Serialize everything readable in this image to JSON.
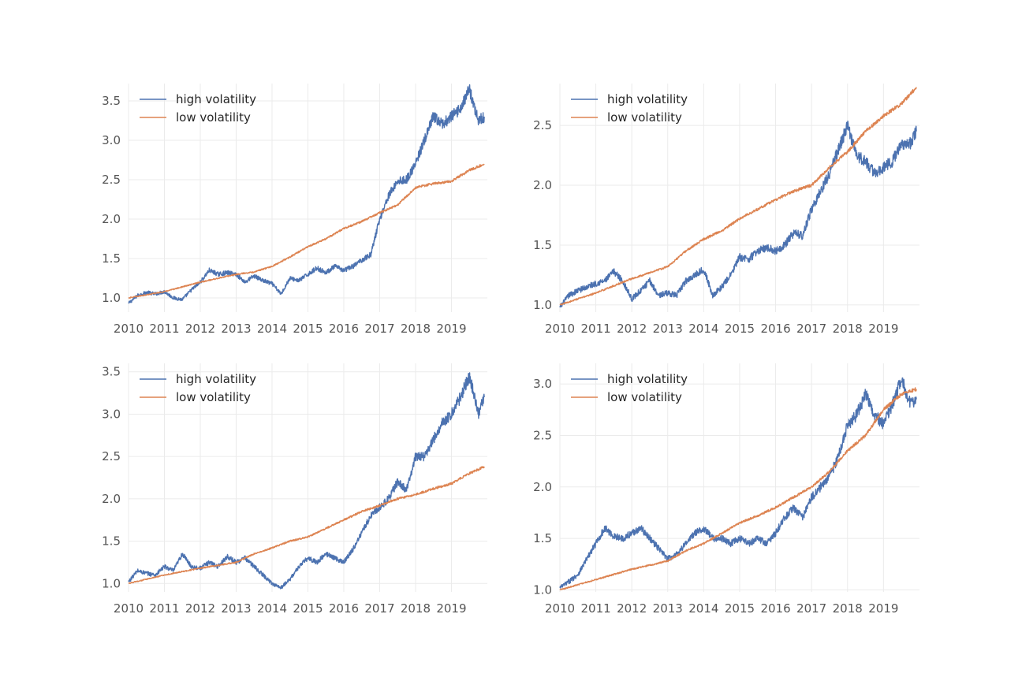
{
  "chart_data": [
    {
      "type": "line",
      "title": "",
      "xlabel": "",
      "ylabel": "",
      "xlim": [
        "2010-01-01",
        "2019-12-31"
      ],
      "ylim": [
        0.82,
        3.72
      ],
      "x_ticks": [
        "2010",
        "2011",
        "2012",
        "2013",
        "2014",
        "2015",
        "2016",
        "2017",
        "2018",
        "2019"
      ],
      "y_ticks": [
        "1.0",
        "1.5",
        "2.0",
        "2.5",
        "3.0",
        "3.5"
      ],
      "grid": true,
      "legend_position": "top-left",
      "series": [
        {
          "name": "high volatility",
          "color": "#4c72b0",
          "x": [
            "2010-01",
            "2010-04",
            "2010-07",
            "2010-10",
            "2011-01",
            "2011-04",
            "2011-07",
            "2011-10",
            "2012-01",
            "2012-04",
            "2012-07",
            "2012-10",
            "2013-01",
            "2013-04",
            "2013-07",
            "2013-10",
            "2014-01",
            "2014-04",
            "2014-07",
            "2014-10",
            "2015-01",
            "2015-04",
            "2015-07",
            "2015-10",
            "2016-01",
            "2016-04",
            "2016-07",
            "2016-10",
            "2017-01",
            "2017-04",
            "2017-07",
            "2017-10",
            "2018-01",
            "2018-04",
            "2018-07",
            "2018-10",
            "2019-01",
            "2019-04",
            "2019-07",
            "2019-10",
            "2019-12"
          ],
          "values": [
            0.93,
            1.03,
            1.07,
            1.05,
            1.08,
            1.0,
            0.98,
            1.1,
            1.2,
            1.35,
            1.3,
            1.32,
            1.3,
            1.2,
            1.28,
            1.22,
            1.18,
            1.05,
            1.25,
            1.22,
            1.3,
            1.38,
            1.32,
            1.4,
            1.35,
            1.4,
            1.48,
            1.55,
            2.0,
            2.3,
            2.48,
            2.5,
            2.7,
            3.0,
            3.3,
            3.2,
            3.3,
            3.4,
            3.65,
            3.25,
            3.3
          ]
        },
        {
          "name": "low volatility",
          "color": "#dd8452",
          "x": [
            "2010-01",
            "2011-01",
            "2012-01",
            "2013-01",
            "2013-07",
            "2014-01",
            "2014-07",
            "2015-01",
            "2015-07",
            "2016-01",
            "2016-07",
            "2017-01",
            "2017-07",
            "2018-01",
            "2018-07",
            "2019-01",
            "2019-07",
            "2019-12"
          ],
          "values": [
            1.0,
            1.08,
            1.2,
            1.3,
            1.33,
            1.4,
            1.52,
            1.65,
            1.75,
            1.88,
            1.97,
            2.08,
            2.18,
            2.4,
            2.45,
            2.48,
            2.62,
            2.7
          ]
        }
      ]
    },
    {
      "type": "line",
      "title": "",
      "xlabel": "",
      "ylabel": "",
      "xlim": [
        "2010-01-01",
        "2019-12-31"
      ],
      "ylim": [
        0.94,
        2.85
      ],
      "x_ticks": [
        "2010",
        "2011",
        "2012",
        "2013",
        "2014",
        "2015",
        "2016",
        "2017",
        "2018",
        "2019"
      ],
      "y_ticks": [
        "1.0",
        "1.5",
        "2.0",
        "2.5"
      ],
      "grid": true,
      "legend_position": "top-left",
      "series": [
        {
          "name": "high volatility",
          "color": "#4c72b0",
          "x": [
            "2010-01",
            "2010-04",
            "2010-07",
            "2010-10",
            "2011-01",
            "2011-04",
            "2011-07",
            "2011-10",
            "2012-01",
            "2012-04",
            "2012-07",
            "2012-10",
            "2013-01",
            "2013-04",
            "2013-07",
            "2013-10",
            "2014-01",
            "2014-04",
            "2014-07",
            "2014-10",
            "2015-01",
            "2015-04",
            "2015-07",
            "2015-10",
            "2016-01",
            "2016-04",
            "2016-07",
            "2016-10",
            "2017-01",
            "2017-04",
            "2017-07",
            "2017-10",
            "2018-01",
            "2018-04",
            "2018-07",
            "2018-10",
            "2019-01",
            "2019-04",
            "2019-07",
            "2019-10",
            "2019-12"
          ],
          "values": [
            0.98,
            1.08,
            1.12,
            1.15,
            1.18,
            1.2,
            1.28,
            1.2,
            1.05,
            1.12,
            1.2,
            1.08,
            1.1,
            1.08,
            1.2,
            1.25,
            1.3,
            1.08,
            1.15,
            1.25,
            1.4,
            1.38,
            1.45,
            1.48,
            1.45,
            1.5,
            1.6,
            1.58,
            1.8,
            1.95,
            2.1,
            2.3,
            2.5,
            2.25,
            2.2,
            2.1,
            2.15,
            2.2,
            2.35,
            2.35,
            2.45
          ]
        },
        {
          "name": "low volatility",
          "color": "#dd8452",
          "x": [
            "2010-01",
            "2011-01",
            "2012-01",
            "2013-01",
            "2013-07",
            "2014-01",
            "2014-07",
            "2015-01",
            "2015-07",
            "2016-01",
            "2016-07",
            "2017-01",
            "2017-07",
            "2018-01",
            "2018-07",
            "2019-01",
            "2019-07",
            "2019-12"
          ],
          "values": [
            1.0,
            1.1,
            1.22,
            1.32,
            1.45,
            1.55,
            1.62,
            1.72,
            1.8,
            1.88,
            1.95,
            2.0,
            2.15,
            2.28,
            2.45,
            2.58,
            2.68,
            2.82
          ]
        }
      ]
    },
    {
      "type": "line",
      "title": "",
      "xlabel": "",
      "ylabel": "",
      "xlim": [
        "2010-01-01",
        "2019-12-31"
      ],
      "ylim": [
        0.9,
        3.6
      ],
      "x_ticks": [
        "2010",
        "2011",
        "2012",
        "2013",
        "2014",
        "2015",
        "2016",
        "2017",
        "2018",
        "2019"
      ],
      "y_ticks": [
        "1.0",
        "1.5",
        "2.0",
        "2.5",
        "3.0",
        "3.5"
      ],
      "grid": true,
      "legend_position": "top-left",
      "series": [
        {
          "name": "high volatility",
          "color": "#4c72b0",
          "x": [
            "2010-01",
            "2010-04",
            "2010-07",
            "2010-10",
            "2011-01",
            "2011-04",
            "2011-07",
            "2011-10",
            "2012-01",
            "2012-04",
            "2012-07",
            "2012-10",
            "2013-01",
            "2013-04",
            "2013-07",
            "2013-10",
            "2014-01",
            "2014-04",
            "2014-07",
            "2014-10",
            "2015-01",
            "2015-04",
            "2015-07",
            "2015-10",
            "2016-01",
            "2016-04",
            "2016-07",
            "2016-10",
            "2017-01",
            "2017-04",
            "2017-07",
            "2017-10",
            "2018-01",
            "2018-04",
            "2018-07",
            "2018-10",
            "2019-01",
            "2019-04",
            "2019-07",
            "2019-10",
            "2019-12"
          ],
          "values": [
            1.02,
            1.15,
            1.12,
            1.1,
            1.2,
            1.15,
            1.35,
            1.2,
            1.18,
            1.25,
            1.2,
            1.32,
            1.25,
            1.3,
            1.2,
            1.1,
            1.0,
            0.95,
            1.05,
            1.2,
            1.3,
            1.25,
            1.35,
            1.3,
            1.25,
            1.4,
            1.6,
            1.8,
            1.9,
            2.0,
            2.2,
            2.1,
            2.5,
            2.5,
            2.7,
            2.9,
            3.0,
            3.2,
            3.45,
            3.0,
            3.2
          ]
        },
        {
          "name": "low volatility",
          "color": "#dd8452",
          "x": [
            "2010-01",
            "2011-01",
            "2012-01",
            "2013-01",
            "2013-07",
            "2014-01",
            "2014-07",
            "2015-01",
            "2015-07",
            "2016-01",
            "2016-07",
            "2017-01",
            "2017-07",
            "2018-01",
            "2018-07",
            "2019-01",
            "2019-07",
            "2019-12"
          ],
          "values": [
            1.0,
            1.1,
            1.18,
            1.25,
            1.35,
            1.42,
            1.5,
            1.55,
            1.65,
            1.75,
            1.85,
            1.92,
            2.0,
            2.05,
            2.12,
            2.18,
            2.3,
            2.38
          ]
        }
      ]
    },
    {
      "type": "line",
      "title": "",
      "xlabel": "",
      "ylabel": "",
      "xlim": [
        "2010-01-01",
        "2019-12-31"
      ],
      "ylim": [
        0.98,
        3.2
      ],
      "x_ticks": [
        "2010",
        "2011",
        "2012",
        "2013",
        "2014",
        "2015",
        "2016",
        "2017",
        "2018",
        "2019"
      ],
      "y_ticks": [
        "1.0",
        "1.5",
        "2.0",
        "2.5",
        "3.0"
      ],
      "grid": true,
      "legend_position": "top-left",
      "series": [
        {
          "name": "high volatility",
          "color": "#4c72b0",
          "x": [
            "2010-01",
            "2010-04",
            "2010-07",
            "2010-10",
            "2011-01",
            "2011-04",
            "2011-07",
            "2011-10",
            "2012-01",
            "2012-04",
            "2012-07",
            "2012-10",
            "2013-01",
            "2013-04",
            "2013-07",
            "2013-10",
            "2014-01",
            "2014-04",
            "2014-07",
            "2014-10",
            "2015-01",
            "2015-04",
            "2015-07",
            "2015-10",
            "2016-01",
            "2016-04",
            "2016-07",
            "2016-10",
            "2017-01",
            "2017-04",
            "2017-07",
            "2017-10",
            "2018-01",
            "2018-04",
            "2018-07",
            "2018-10",
            "2019-01",
            "2019-04",
            "2019-07",
            "2019-10",
            "2019-12"
          ],
          "values": [
            1.02,
            1.08,
            1.15,
            1.3,
            1.45,
            1.6,
            1.52,
            1.5,
            1.55,
            1.6,
            1.5,
            1.4,
            1.3,
            1.35,
            1.45,
            1.55,
            1.6,
            1.5,
            1.5,
            1.45,
            1.5,
            1.45,
            1.5,
            1.45,
            1.55,
            1.7,
            1.8,
            1.7,
            1.9,
            2.0,
            2.1,
            2.3,
            2.6,
            2.7,
            2.9,
            2.7,
            2.6,
            2.8,
            3.05,
            2.8,
            2.85
          ]
        },
        {
          "name": "low volatility",
          "color": "#dd8452",
          "x": [
            "2010-01",
            "2011-01",
            "2012-01",
            "2013-01",
            "2013-07",
            "2014-01",
            "2014-07",
            "2015-01",
            "2015-07",
            "2016-01",
            "2016-07",
            "2017-01",
            "2017-07",
            "2018-01",
            "2018-07",
            "2019-01",
            "2019-07",
            "2019-12"
          ],
          "values": [
            1.0,
            1.1,
            1.2,
            1.28,
            1.38,
            1.45,
            1.55,
            1.65,
            1.72,
            1.8,
            1.9,
            2.0,
            2.15,
            2.35,
            2.5,
            2.75,
            2.9,
            2.95
          ]
        }
      ]
    }
  ]
}
